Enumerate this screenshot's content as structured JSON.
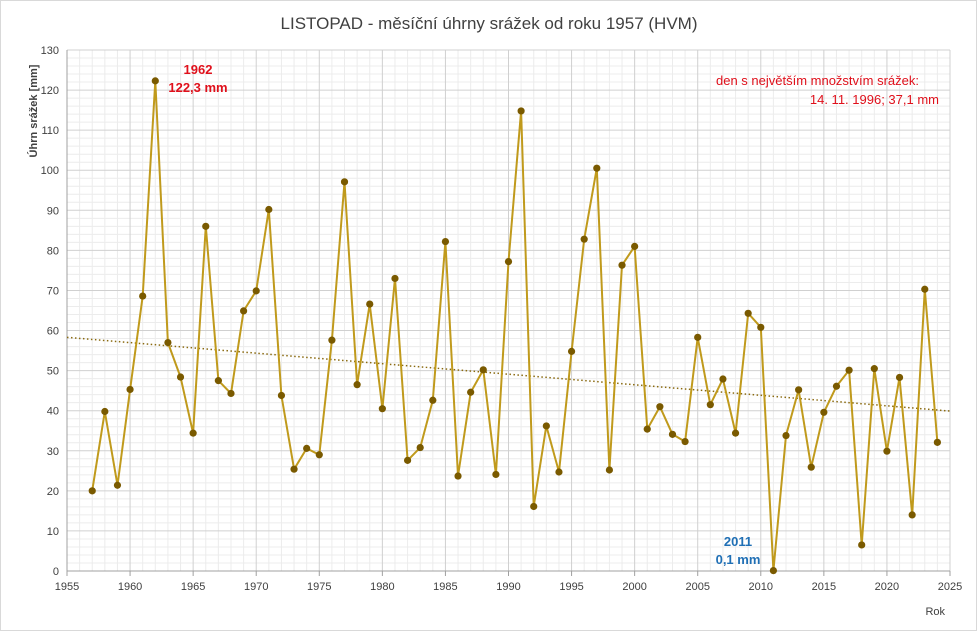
{
  "chart_data": {
    "type": "line",
    "title": "LISTOPAD - měsíční úhrny srážek od roku 1957 (HVM)",
    "xlabel": "Rok",
    "ylabel": "Úhrn srážek [mm]",
    "xlim": [
      1955,
      2025
    ],
    "ylim": [
      0,
      130
    ],
    "x_ticks": [
      1955,
      1960,
      1965,
      1970,
      1975,
      1980,
      1985,
      1990,
      1995,
      2000,
      2005,
      2010,
      2015,
      2020,
      2025
    ],
    "y_ticks": [
      0,
      10,
      20,
      30,
      40,
      50,
      60,
      70,
      80,
      90,
      100,
      110,
      120,
      130
    ],
    "grid": true,
    "series": [
      {
        "color": "#c09a1c",
        "marker_color": "#7a5a00",
        "x": [
          1957,
          1958,
          1959,
          1960,
          1961,
          1962,
          1963,
          1964,
          1965,
          1966,
          1967,
          1968,
          1969,
          1970,
          1971,
          1972,
          1973,
          1974,
          1975,
          1976,
          1977,
          1978,
          1979,
          1980,
          1981,
          1982,
          1983,
          1984,
          1985,
          1986,
          1987,
          1988,
          1989,
          1990,
          1991,
          1992,
          1993,
          1994,
          1995,
          1996,
          1997,
          1998,
          1999,
          2000,
          2001,
          2002,
          2003,
          2004,
          2005,
          2006,
          2007,
          2008,
          2009,
          2010,
          2011,
          2012,
          2013,
          2014,
          2015,
          2016,
          2017,
          2018,
          2019,
          2020,
          2021,
          2022,
          2023,
          2024
        ],
        "y": [
          20.0,
          39.8,
          21.4,
          45.3,
          68.6,
          122.3,
          57.0,
          48.4,
          34.4,
          86.0,
          47.5,
          44.3,
          64.9,
          69.9,
          90.2,
          43.8,
          25.4,
          30.6,
          29.0,
          57.6,
          97.1,
          46.5,
          66.6,
          40.5,
          73.0,
          27.6,
          30.8,
          42.6,
          82.2,
          23.7,
          44.6,
          50.2,
          24.1,
          77.2,
          114.8,
          16.1,
          36.2,
          24.7,
          54.8,
          82.8,
          100.5,
          25.2,
          76.3,
          81.0,
          35.4,
          41.0,
          34.1,
          32.3,
          58.3,
          41.5,
          47.9,
          34.4,
          64.3,
          60.8,
          0.1,
          33.8,
          45.2,
          25.9,
          39.6,
          46.1,
          50.1,
          6.5,
          50.5,
          29.9,
          48.3,
          14.0,
          70.3,
          32.1
        ]
      }
    ],
    "trendline": {
      "style": "dotted",
      "color": "#8a6a10",
      "x": [
        1955,
        2025
      ],
      "y": [
        58.3,
        39.9
      ]
    },
    "annotations": {
      "max_year": "1962",
      "max_value": "122,3 mm",
      "min_year": "2011",
      "min_value": "0,1 mm",
      "note_line1": "den s největším množstvím srážek:",
      "note_line2": "14. 11. 1996; 37,1 mm"
    }
  }
}
